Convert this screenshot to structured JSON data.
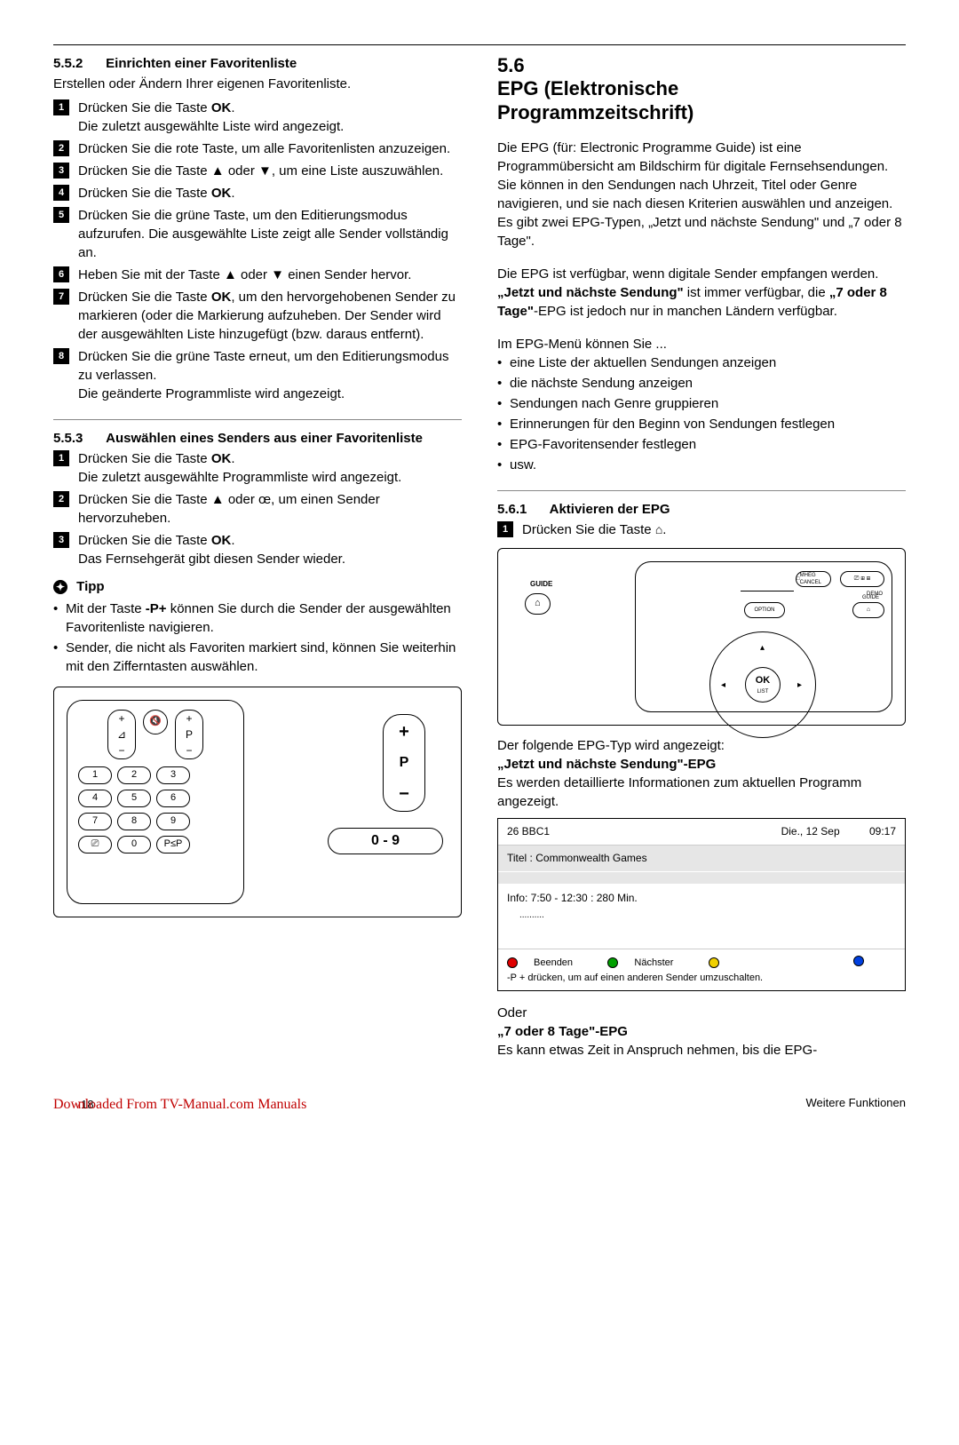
{
  "left": {
    "s552": {
      "num": "5.5.2",
      "title": "Einrichten einer Favoritenliste",
      "intro": "Erstellen oder Ändern Ihrer eigenen Favoritenliste.",
      "steps": [
        "Drücken Sie die Taste <b>OK</b>.<br>Die zuletzt ausgewählte Liste wird angezeigt.",
        "Drücken Sie die rote Taste, um alle Favoritenlisten anzuzeigen.",
        "Drücken Sie die Taste ▲ oder ▼, um eine Liste auszuwählen.",
        "Drücken Sie die Taste <b>OK</b>.",
        "Drücken Sie die grüne Taste, um den Editierungsmodus aufzurufen. Die ausgewählte Liste zeigt alle Sender vollständig an.",
        "Heben Sie mit der Taste ▲ oder ▼ einen Sender hervor.",
        "Drücken Sie die Taste <b>OK</b>, um den hervorgehobenen Sender zu markieren (oder die Markierung aufzuheben. Der Sender wird der ausgewählten Liste hinzugefügt (bzw. daraus entfernt).",
        "Drücken Sie die grüne Taste erneut, um den Editierungsmodus zu verlassen.<br>Die geänderte Programmliste wird angezeigt."
      ]
    },
    "s553": {
      "num": "5.5.3",
      "title": "Auswählen eines Senders aus einer Favoritenliste",
      "steps": [
        "Drücken Sie die Taste <b>OK</b>.<br>Die zuletzt ausgewählte Programmliste wird angezeigt.",
        "Drücken Sie die Taste ▲ oder œ, um einen Sender hervorzuheben.",
        "Drücken Sie die Taste <b>OK</b>.<br>Das Fernsehgerät gibt diesen Sender wieder."
      ]
    },
    "tipp": {
      "label": "Tipp",
      "bullets": [
        "Mit der Taste <b>-P+</b> können Sie durch die Sender der ausgewählten Favoritenliste navigieren.",
        "Sender, die nicht als Favoriten markiert sind, können Sie weiterhin mit den Zifferntasten auswählen."
      ]
    },
    "remote": {
      "p_label": "P",
      "big_09": "0   -   9",
      "numpad": [
        "1",
        "2",
        "3",
        "4",
        "5",
        "6",
        "7",
        "8",
        "9",
        "⎚",
        "0",
        "P≤P"
      ]
    }
  },
  "right": {
    "h56": {
      "num": "5.6",
      "title": "EPG (Elektronische Programmzeitschrift)"
    },
    "p1": "Die EPG (für: Electronic Programme Guide) ist eine Programmübersicht am Bildschirm für digitale Fernsehsendungen. Sie können in den Sendungen nach Uhrzeit, Titel oder Genre navigieren, und sie nach diesen Kriterien auswählen und anzeigen. Es gibt zwei EPG-Typen, „Jetzt und nächste Sendung\" und „7 oder 8 Tage\".",
    "p2": "Die EPG ist verfügbar, wenn digitale Sender empfangen werden. <b>„Jetzt und nächste Sendung\"</b> ist immer verfügbar, die <b>„7 oder 8 Tage\"</b>-EPG ist jedoch nur in manchen Ländern verfügbar.",
    "p3_lead": "Im EPG-Menü können Sie ...",
    "p3_bullets": [
      "eine Liste der aktuellen Sendungen anzeigen",
      "die nächste Sendung anzeigen",
      "Sendungen nach Genre gruppieren",
      "Erinnerungen für den Beginn von Sendungen festlegen",
      "EPG-Favoritensender festlegen",
      "usw."
    ],
    "s561": {
      "num": "5.6.1",
      "title": "Aktivieren der EPG",
      "step1_pre": "Drücken Sie die Taste ",
      "step1_icon": "📖"
    },
    "remote2": {
      "guide": "GUIDE",
      "demo": "DEMO",
      "option": "OPTION",
      "mheg": "MHEG CANCEL",
      "ok": "OK",
      "list": "LIST"
    },
    "after_remote": "Der folgende EPG-Typ wird angezeigt:",
    "epg_now_title": "„Jetzt und nächste Sendung\"-EPG",
    "epg_now_desc": "Es werden detaillierte Informationen zum aktuellen Programm angezeigt.",
    "epg_card": {
      "ch": "26  BBC1",
      "date": "Die., 12 Sep",
      "time": "09:17",
      "title": "Titel : Commonwealth Games",
      "info": "Info: 7:50 - 12:30 : 280 Min.",
      "dots": "..........",
      "legend": {
        "red": "Beenden",
        "green": "Nächster"
      },
      "note": "-P + drücken, um auf einen anderen Sender umzuschalten."
    },
    "oder": "Oder",
    "epg7_title": "„7 oder 8 Tage\"-EPG",
    "epg7_desc": "Es kann etwas Zeit in Anspruch nehmen, bis die EPG-"
  },
  "footer": {
    "left_a": "Dow",
    "left_b": "nlo",
    "left_c": "aded From TV-Manual.com Manuals",
    "pagenum": "18",
    "right": "Weitere Funktionen"
  }
}
